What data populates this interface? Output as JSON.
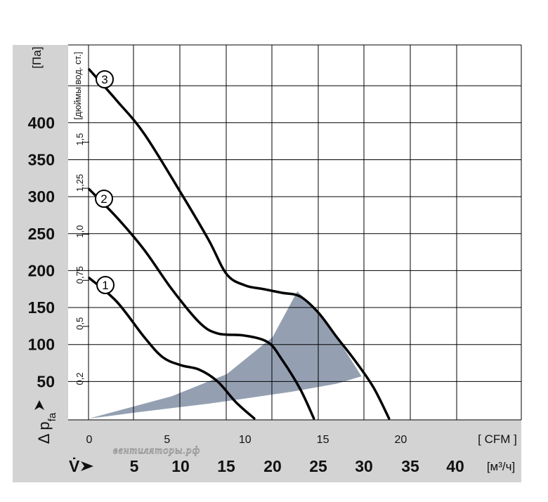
{
  "chart_data": {
    "type": "line",
    "y_unit": "[Па]",
    "y_ticks": [
      "50",
      "100",
      "150",
      "200",
      "250",
      "300",
      "350",
      "400"
    ],
    "y_label": "Δ p",
    "y_label_sub": "fa",
    "y2_unit": "[дюймы вод. ст.]",
    "y2_ticks": [
      "0,2",
      "0,5",
      "0,75",
      "1,0",
      "1,25",
      "1,5"
    ],
    "y2_values": [
      0.2,
      0.5,
      0.75,
      1.0,
      1.25,
      1.5
    ],
    "x_ticks_cfm": [
      "0",
      "5",
      "10",
      "15",
      "20"
    ],
    "x_unit_cfm": "[ CFM ]",
    "x_label": "V̇",
    "x_ticks_m3h": [
      "5",
      "10",
      "15",
      "20",
      "25",
      "30",
      "35",
      "40"
    ],
    "x_unit_m3h": "[м³/ч]",
    "watermark": "вентиляторы.рф",
    "xlim_m3h": [
      0,
      47
    ],
    "ylim_pa": [
      0,
      470
    ],
    "series": [
      {
        "name": "1",
        "x": [
          0,
          3,
          6,
          8,
          10,
          12,
          14,
          16,
          18
        ],
        "y": [
          190,
          158,
          110,
          83,
          72,
          66,
          50,
          22,
          0
        ]
      },
      {
        "name": "2",
        "x": [
          0,
          3,
          6,
          9,
          12,
          14,
          17,
          19.5,
          21,
          23,
          24.5
        ],
        "y": [
          310,
          272,
          228,
          175,
          130,
          115,
          112,
          103,
          80,
          40,
          0
        ]
      },
      {
        "name": "3",
        "x": [
          0,
          3,
          6,
          10,
          13,
          15,
          17,
          19,
          21,
          23,
          25,
          27,
          29,
          31,
          32.7
        ],
        "y": [
          472,
          430,
          385,
          305,
          242,
          195,
          180,
          175,
          170,
          165,
          143,
          110,
          78,
          42,
          0
        ]
      }
    ],
    "operating_region": {
      "color": "#94a0b2",
      "outer_x": [
        0,
        9,
        15,
        20,
        22.7,
        25,
        27.5,
        29.7
      ],
      "outer_y": [
        0,
        30,
        60,
        110,
        172,
        145,
        100,
        57
      ],
      "inner_x": [
        29.7,
        27,
        22,
        17,
        13,
        9,
        5,
        2,
        0
      ],
      "inner_y": [
        57,
        47,
        36,
        27,
        20,
        14,
        8,
        3,
        0
      ]
    },
    "grid": true
  }
}
